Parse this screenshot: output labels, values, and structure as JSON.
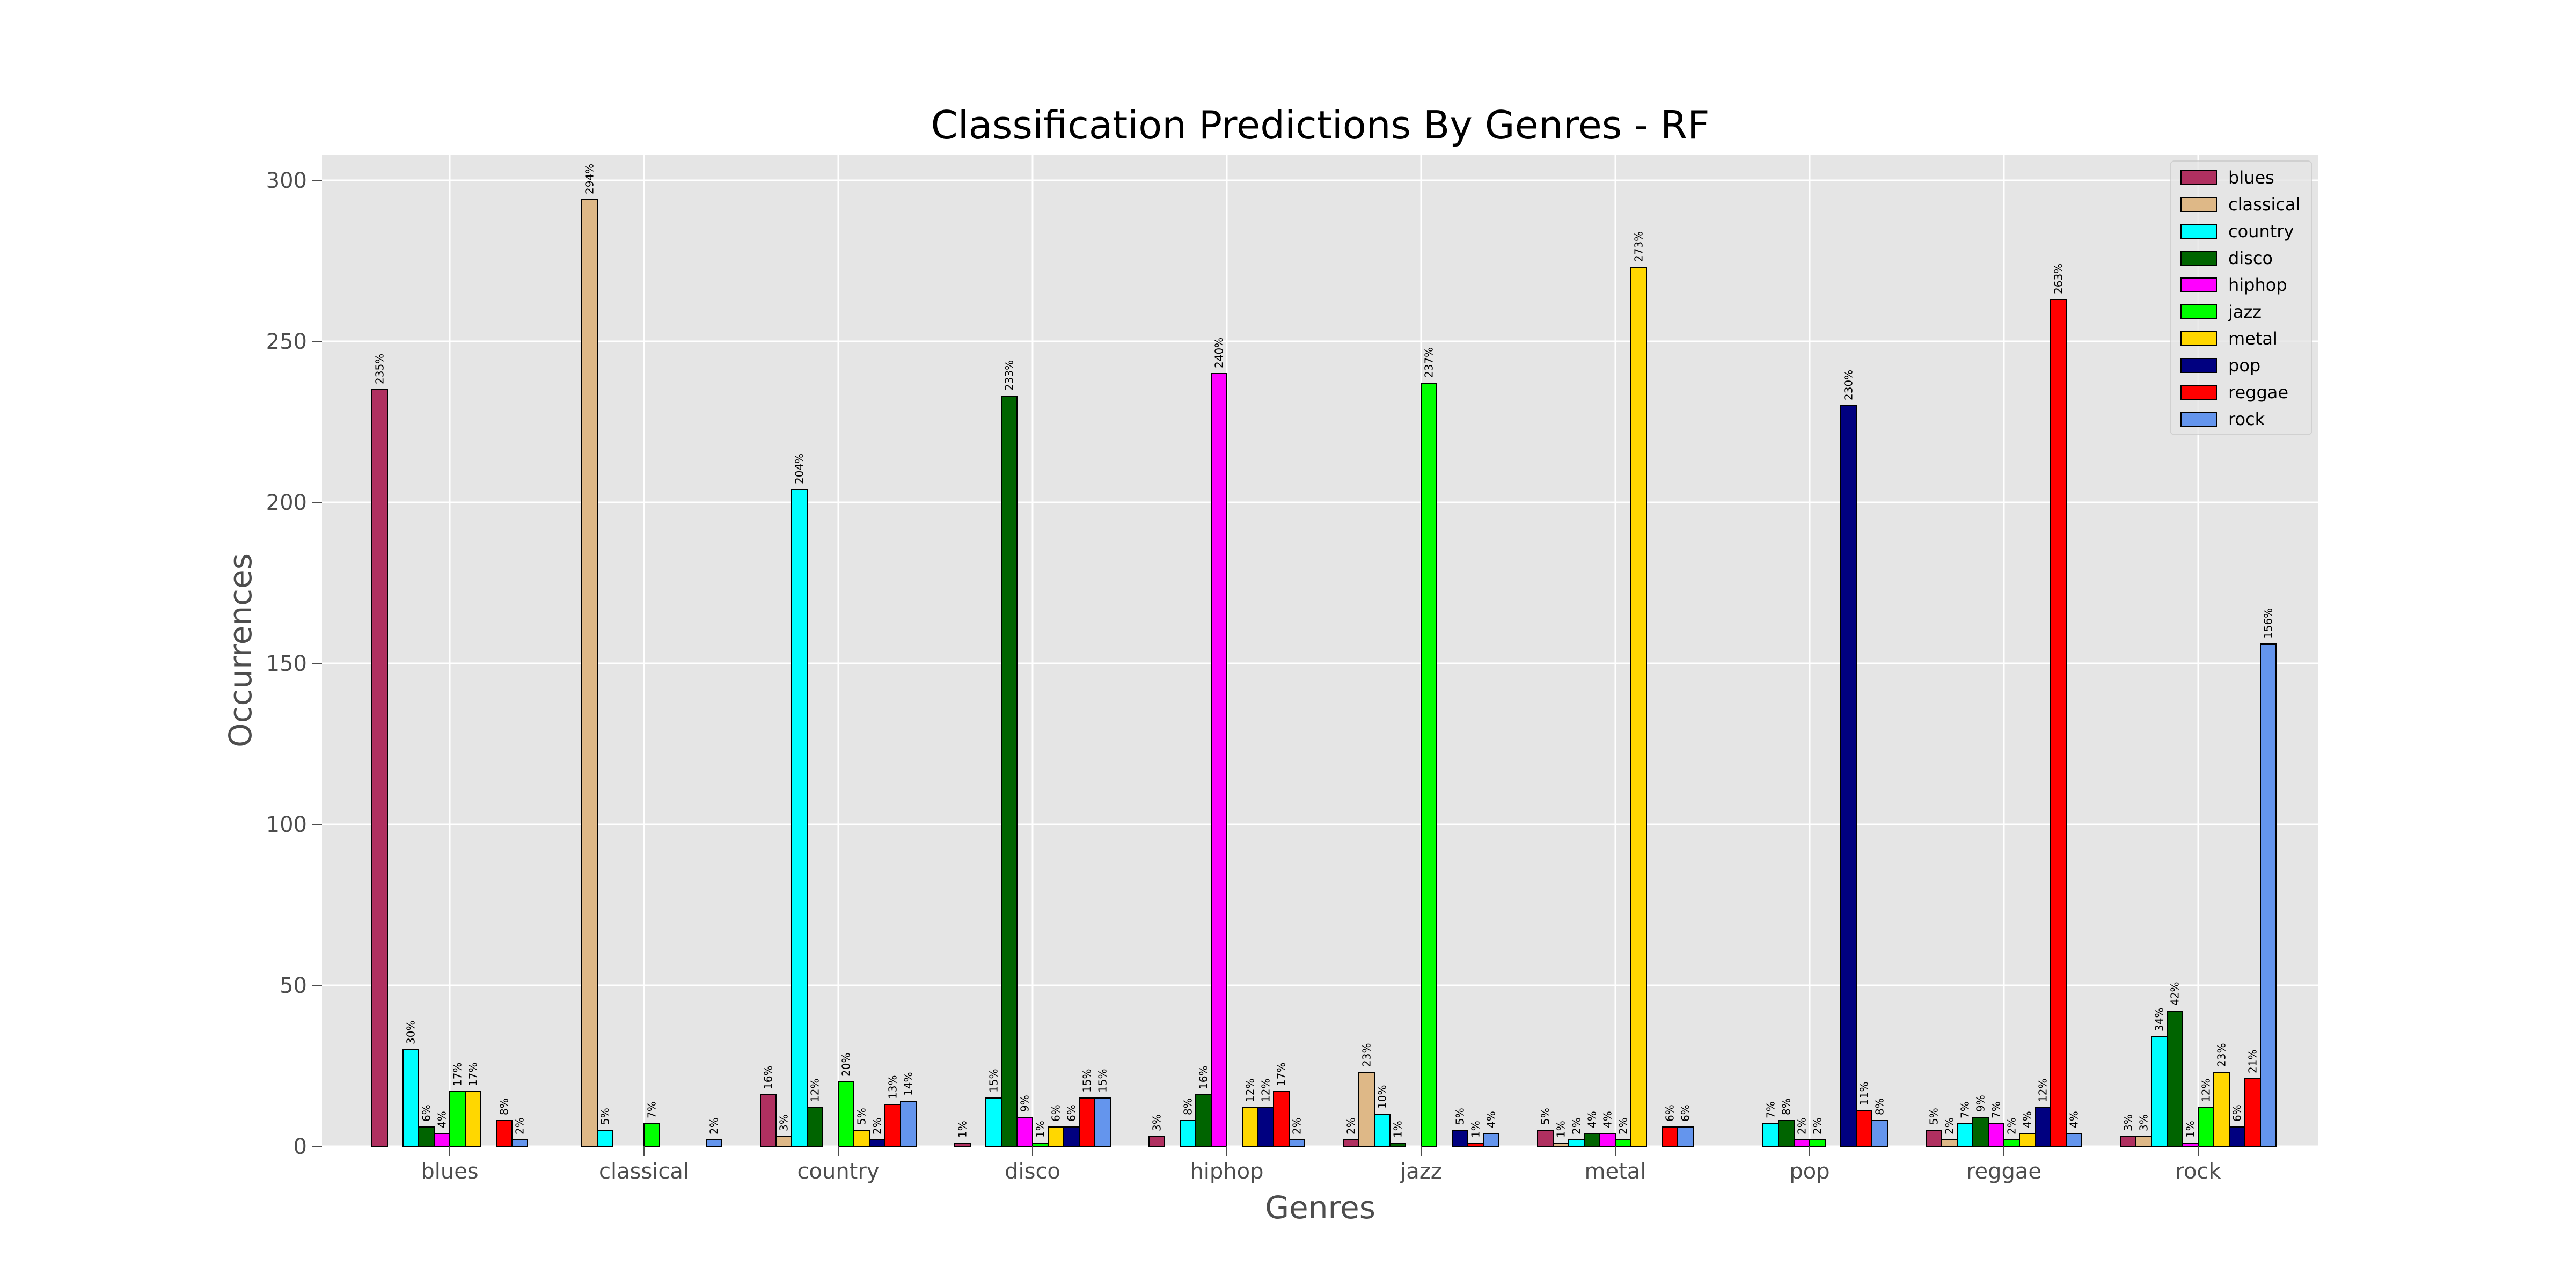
{
  "chart_data": {
    "type": "bar",
    "title": "Classification Predictions By Genres - RF",
    "xlabel": "Genres",
    "ylabel": "Occurrences",
    "ylim": [
      0,
      308
    ],
    "yticks": [
      0,
      50,
      100,
      150,
      200,
      250,
      300
    ],
    "grid": true,
    "legend_position": "top-right",
    "categories": [
      "blues",
      "classical",
      "country",
      "disco",
      "hiphop",
      "jazz",
      "metal",
      "pop",
      "reggae",
      "rock"
    ],
    "series": [
      {
        "name": "blues",
        "color": "#b03060",
        "values": [
          235,
          0,
          16,
          1,
          3,
          2,
          5,
          0,
          5,
          3
        ],
        "labels": [
          "235%",
          "",
          "16%",
          "1%",
          "3%",
          "2%",
          "5%",
          "",
          "5%",
          "3%"
        ]
      },
      {
        "name": "classical",
        "color": "#deb887",
        "values": [
          0,
          294,
          3,
          0,
          0,
          23,
          1,
          0,
          2,
          3
        ],
        "labels": [
          "",
          "294%",
          "3%",
          "",
          "",
          "23%",
          "1%",
          "",
          "2%",
          "3%"
        ]
      },
      {
        "name": "country",
        "color": "#00ffff",
        "values": [
          30,
          5,
          204,
          15,
          8,
          10,
          2,
          7,
          7,
          34
        ],
        "labels": [
          "30%",
          "5%",
          "204%",
          "15%",
          "8%",
          "10%",
          "2%",
          "7%",
          "7%",
          "34%"
        ]
      },
      {
        "name": "disco",
        "color": "#006400",
        "values": [
          6,
          0,
          12,
          233,
          16,
          1,
          4,
          8,
          9,
          42
        ],
        "labels": [
          "6%",
          "",
          "12%",
          "233%",
          "16%",
          "1%",
          "4%",
          "8%",
          "9%",
          "42%"
        ]
      },
      {
        "name": "hiphop",
        "color": "#ff00ff",
        "values": [
          4,
          0,
          0,
          9,
          240,
          0,
          4,
          2,
          7,
          1
        ],
        "labels": [
          "4%",
          "",
          "",
          "9%",
          "240%",
          "",
          "4%",
          "2%",
          "7%",
          "1%"
        ]
      },
      {
        "name": "jazz",
        "color": "#00ff00",
        "values": [
          17,
          7,
          20,
          1,
          0,
          237,
          2,
          2,
          2,
          12
        ],
        "labels": [
          "17%",
          "7%",
          "20%",
          "1%",
          "",
          "237%",
          "2%",
          "2%",
          "2%",
          "12%"
        ]
      },
      {
        "name": "metal",
        "color": "#ffd700",
        "values": [
          17,
          0,
          5,
          6,
          12,
          0,
          273,
          0,
          4,
          23
        ],
        "labels": [
          "17%",
          "",
          "5%",
          "6%",
          "12%",
          "",
          "273%",
          "",
          "4%",
          "23%"
        ]
      },
      {
        "name": "pop",
        "color": "#000080",
        "values": [
          0,
          0,
          2,
          6,
          12,
          5,
          0,
          230,
          12,
          6
        ],
        "labels": [
          "",
          "",
          "2%",
          "6%",
          "12%",
          "5%",
          "",
          "230%",
          "12%",
          "6%"
        ]
      },
      {
        "name": "reggae",
        "color": "#ff0000",
        "values": [
          8,
          0,
          13,
          15,
          17,
          1,
          6,
          11,
          263,
          21
        ],
        "labels": [
          "8%",
          "",
          "13%",
          "15%",
          "17%",
          "1%",
          "6%",
          "11%",
          "263%",
          "21%"
        ]
      },
      {
        "name": "rock",
        "color": "#6495ed",
        "values": [
          2,
          2,
          14,
          15,
          2,
          4,
          6,
          8,
          4,
          156
        ],
        "labels": [
          "2%",
          "2%",
          "14%",
          "15%",
          "2%",
          "4%",
          "6%",
          "8%",
          "4%",
          "156%"
        ]
      }
    ]
  }
}
